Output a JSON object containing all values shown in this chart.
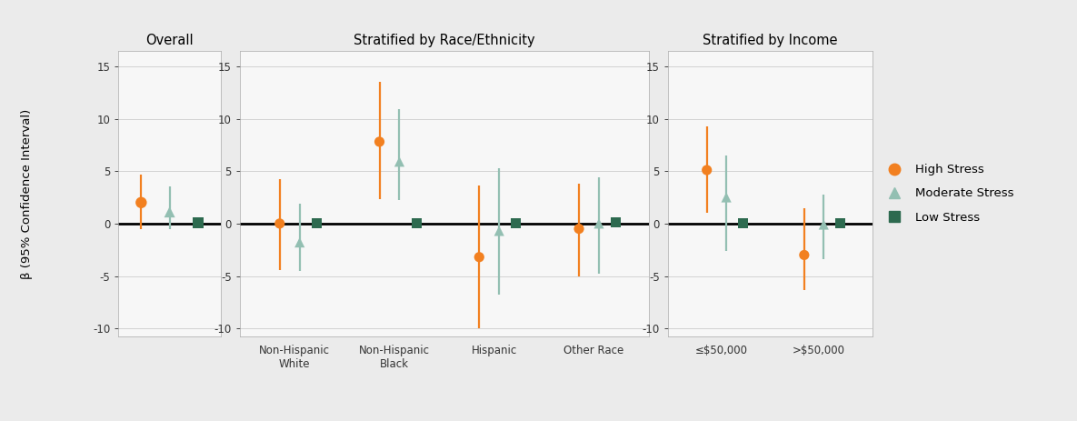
{
  "title_overall": "Overall",
  "title_race": "Stratified by Race/Ethnicity",
  "title_income": "Stratified by Income",
  "ylabel": "β (95% Confidence Interval)",
  "ylim": [
    -10.8,
    16.5
  ],
  "yticks": [
    -10,
    -5,
    0,
    5,
    10,
    15
  ],
  "bg_color": "#ebebeb",
  "panel_color": "#f7f7f7",
  "grid_color": "#cccccc",
  "colors": {
    "high": "#f28020",
    "moderate": "#93bfb2",
    "low": "#2d6a4f"
  },
  "overall": {
    "high": {
      "est": 2.0,
      "lo": -0.5,
      "hi": 4.7
    },
    "moderate": {
      "est": 1.1,
      "lo": -0.5,
      "hi": 3.5
    },
    "low": {
      "est": 0.05,
      "lo": -0.15,
      "hi": 0.15
    }
  },
  "race": {
    "categories": [
      "Non-Hispanic\nWhite",
      "Non-Hispanic\nBlack",
      "Hispanic",
      "Other Race"
    ],
    "high": [
      {
        "est": 0.0,
        "lo": -4.4,
        "hi": 4.2
      },
      {
        "est": 7.8,
        "lo": 2.3,
        "hi": 13.5
      },
      {
        "est": -3.2,
        "lo": -10.0,
        "hi": 3.6
      },
      {
        "est": -0.5,
        "lo": -5.0,
        "hi": 3.8
      }
    ],
    "moderate": [
      {
        "est": -1.8,
        "lo": -4.5,
        "hi": 1.9
      },
      {
        "est": 5.9,
        "lo": 2.2,
        "hi": 10.9
      },
      {
        "est": -0.7,
        "lo": -6.8,
        "hi": 5.3
      },
      {
        "est": -0.0,
        "lo": -4.8,
        "hi": 4.4
      }
    ],
    "low": [
      {
        "est": 0.0,
        "lo": -0.15,
        "hi": 0.15
      },
      {
        "est": 0.0,
        "lo": -0.15,
        "hi": 0.15
      },
      {
        "est": 0.0,
        "lo": -0.15,
        "hi": 0.15
      },
      {
        "est": 0.15,
        "lo": -0.15,
        "hi": 0.35
      }
    ]
  },
  "income": {
    "categories": [
      "≤$50,000",
      ">$50,000"
    ],
    "high": [
      {
        "est": 5.1,
        "lo": 1.0,
        "hi": 9.3
      },
      {
        "est": -3.0,
        "lo": -6.3,
        "hi": 1.5
      }
    ],
    "moderate": [
      {
        "est": 2.5,
        "lo": -2.6,
        "hi": 6.5
      },
      {
        "est": -0.1,
        "lo": -3.4,
        "hi": 2.8
      }
    ],
    "low": [
      {
        "est": 0.0,
        "lo": -0.15,
        "hi": 0.15
      },
      {
        "est": 0.0,
        "lo": -0.15,
        "hi": 0.15
      }
    ]
  },
  "legend": {
    "high_label": "High Stress",
    "moderate_label": "Moderate Stress",
    "low_label": "Low Stress"
  }
}
